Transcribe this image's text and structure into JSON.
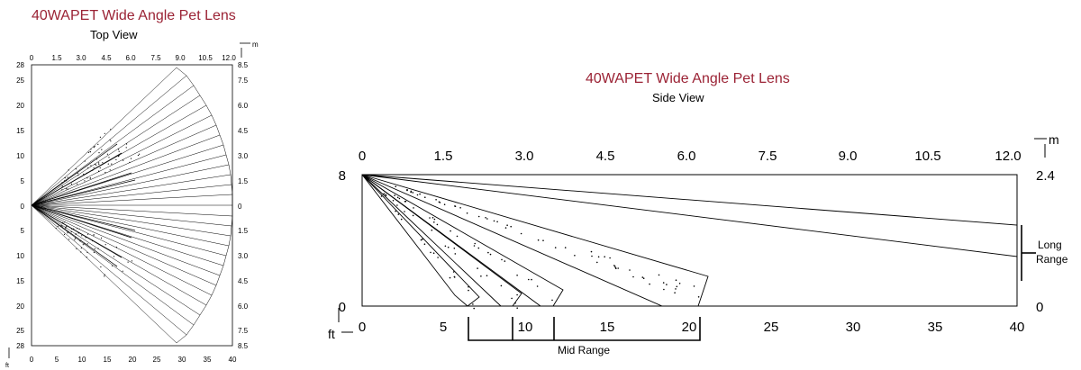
{
  "accent_color": "#9b2335",
  "top_view": {
    "title": "40WAPET Wide Angle Pet Lens",
    "subtitle": "Top View",
    "unit_m": "m",
    "unit_ft": "ft",
    "m_ticks": [
      "0",
      "1.5",
      "3.0",
      "4.5",
      "6.0",
      "7.5",
      "9.0",
      "10.5",
      "12.0"
    ],
    "ft_ticks": [
      "0",
      "5",
      "10",
      "15",
      "20",
      "25",
      "30",
      "35",
      "40"
    ],
    "left_ft_ticks": [
      "28",
      "25",
      "20",
      "15",
      "10",
      "5",
      "0",
      "5",
      "10",
      "15",
      "20",
      "25",
      "28"
    ],
    "right_m_ticks": [
      "8.5",
      "7.5",
      "6.0",
      "4.5",
      "3.0",
      "1.5",
      "0",
      "1.5",
      "3.0",
      "4.5",
      "6.0",
      "7.5",
      "8.5"
    ]
  },
  "side_view": {
    "title": "40WAPET Wide Angle Pet Lens",
    "subtitle": "Side View",
    "unit_m": "m",
    "unit_ft": "ft",
    "m_ticks": [
      "0",
      "1.5",
      "3.0",
      "4.5",
      "6.0",
      "7.5",
      "9.0",
      "10.5",
      "12.0"
    ],
    "ft_ticks": [
      "0",
      "5",
      "10",
      "15",
      "20",
      "25",
      "30",
      "35",
      "40"
    ],
    "left_ft_ticks": [
      "8",
      "0"
    ],
    "right_m_ticks": [
      "2.4",
      "0"
    ],
    "long_range_label": "Long Range",
    "mid_range_label": "Mid Range"
  }
}
